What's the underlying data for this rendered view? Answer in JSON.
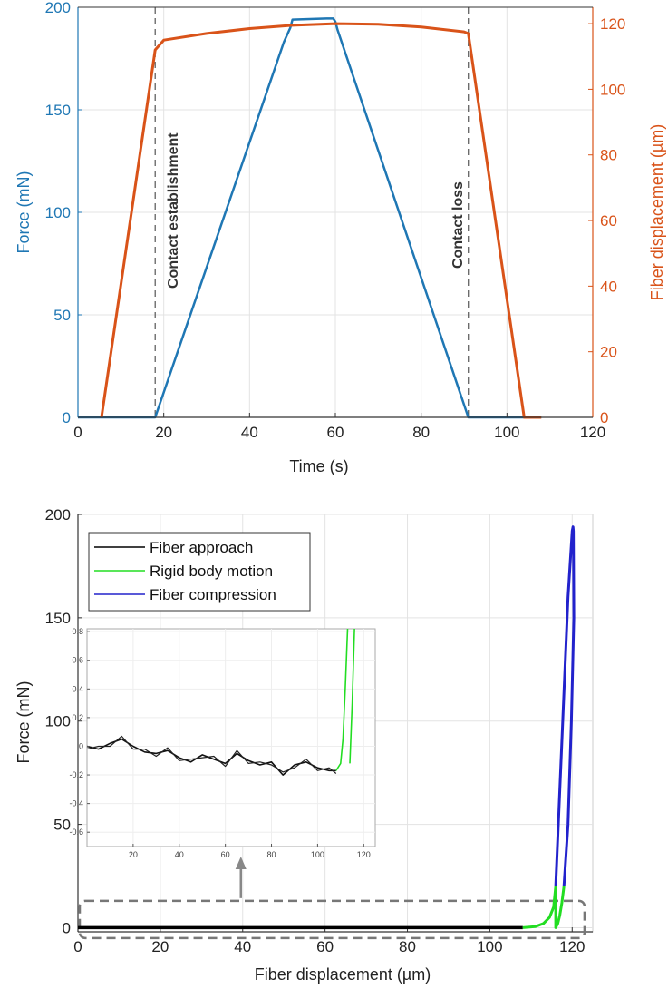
{
  "chart_data": [
    {
      "type": "line",
      "xlabel": "Time (s)",
      "ylabel_left": "Force (mN)",
      "ylabel_right": "Fiber displacement (µm)",
      "xlim": [
        0,
        120
      ],
      "ylim_left": [
        0,
        200
      ],
      "ylim_right": [
        0,
        125
      ],
      "x_ticks": [
        "0",
        "20",
        "40",
        "60",
        "80",
        "100",
        "120"
      ],
      "y_ticks_left": [
        "0",
        "50",
        "100",
        "150",
        "200"
      ],
      "y_ticks_right": [
        "0",
        "20",
        "40",
        "60",
        "80",
        "100",
        "120"
      ],
      "grid": true,
      "colors": {
        "force": "#1f77b4",
        "displacement": "#d95319",
        "vline": "#555555"
      },
      "annotations": [
        {
          "text": "Contact establishment",
          "x": 18
        },
        {
          "text": "Contact loss",
          "x": 91
        }
      ],
      "series": [
        {
          "axis": "left",
          "color": "force",
          "x": [
            0,
            18,
            48,
            49.5,
            50,
            58,
            59,
            59.5,
            60,
            60.5,
            91,
            108
          ],
          "y": [
            0,
            0,
            183,
            190,
            194,
            194.5,
            194.5,
            194.5,
            193,
            189,
            0,
            0
          ]
        },
        {
          "axis": "right",
          "color": "displacement",
          "x": [
            5.5,
            18,
            20,
            30,
            40,
            50,
            60,
            70,
            80,
            90,
            91,
            104,
            108
          ],
          "y": [
            0,
            112,
            115,
            117,
            118.5,
            119.5,
            120,
            119.8,
            119,
            117.5,
            117,
            0,
            0
          ]
        }
      ]
    },
    {
      "type": "line",
      "xlabel": "Fiber displacement (µm)",
      "ylabel": "Force (mN)",
      "xlim": [
        0,
        125
      ],
      "ylim": [
        -2,
        200
      ],
      "x_ticks": [
        "0",
        "20",
        "40",
        "60",
        "80",
        "100",
        "120"
      ],
      "y_ticks": [
        "0",
        "50",
        "100",
        "150",
        "200"
      ],
      "grid": true,
      "legend": {
        "placement": "top-left",
        "entries": [
          "Fiber approach",
          "Rigid body motion",
          "Fiber compression"
        ]
      },
      "colors": {
        "Fiber approach": "#000000",
        "Rigid body motion": "#22dd22",
        "Fiber compression": "#2222cc"
      },
      "series": [
        {
          "name": "Fiber approach",
          "x": [
            0,
            108
          ],
          "y": [
            0,
            0
          ]
        },
        {
          "name": "Rigid body motion",
          "x": [
            108,
            111,
            113,
            114.5,
            115.5,
            116,
            116,
            116.5,
            117,
            117.5,
            118
          ],
          "y": [
            0,
            0.5,
            2,
            5,
            10,
            20,
            0,
            2,
            6,
            12,
            20
          ]
        },
        {
          "name": "Fiber compression",
          "x": [
            116,
            117.5,
            119,
            120,
            120.2,
            120.3,
            120.4,
            119.8,
            119,
            118
          ],
          "y": [
            20,
            90,
            160,
            192,
            194,
            192,
            150,
            100,
            50,
            20
          ]
        }
      ],
      "inset": {
        "xlim": [
          0,
          125
        ],
        "ylim": [
          -0.7,
          0.82
        ],
        "x_ticks": [
          "20",
          "40",
          "60",
          "80",
          "100",
          "120"
        ],
        "y_ticks": [
          "0.8",
          "0.6",
          "0.4",
          "0.2",
          "0",
          "-0.2",
          "-0.4",
          "-0.6"
        ],
        "approach_x": [
          0,
          5,
          10,
          15,
          20,
          25,
          30,
          35,
          40,
          45,
          50,
          55,
          60,
          65,
          70,
          75,
          80,
          85,
          90,
          95,
          100,
          105,
          108
        ],
        "approach_y": [
          0,
          -0.02,
          0.02,
          0.05,
          0,
          -0.04,
          -0.05,
          -0.03,
          -0.08,
          -0.11,
          -0.06,
          -0.09,
          -0.12,
          -0.05,
          -0.1,
          -0.13,
          -0.11,
          -0.2,
          -0.13,
          -0.11,
          -0.15,
          -0.17,
          -0.17
        ],
        "rigid_x": [
          108,
          110,
          111,
          112,
          113,
          114,
          115,
          116
        ],
        "rigid_y": [
          -0.17,
          -0.12,
          0.05,
          0.4,
          0.82,
          -0.12,
          0.3,
          0.82
        ]
      },
      "annotation_box": {
        "x": [
          0,
          123
        ],
        "y": [
          -5,
          13
        ]
      }
    }
  ]
}
